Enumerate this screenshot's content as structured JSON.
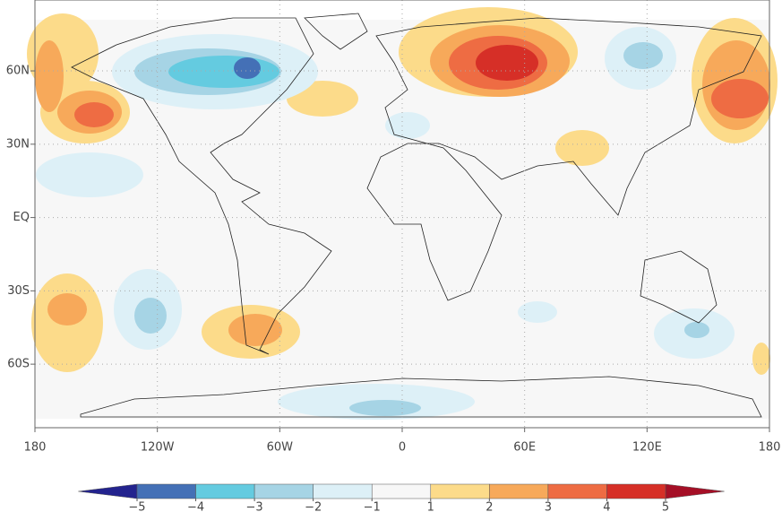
{
  "map": {
    "xlim": [
      -180,
      180
    ],
    "ylim": [
      -86,
      89
    ],
    "xticks": [
      {
        "value": -180,
        "label": "180"
      },
      {
        "value": -120,
        "label": "120W"
      },
      {
        "value": -60,
        "label": "60W"
      },
      0,
      {
        "value": 60,
        "label": "60E"
      },
      {
        "value": 120,
        "label": "120E"
      },
      {
        "value": 180,
        "label": "180"
      }
    ],
    "yticks": [
      {
        "value": 60,
        "label": "60N"
      },
      {
        "value": 30,
        "label": "30N"
      },
      {
        "value": 0,
        "label": "EQ"
      },
      {
        "value": -30,
        "label": "30S"
      },
      {
        "value": -60,
        "label": "60S"
      }
    ],
    "grid": true
  },
  "colorbar": {
    "ticks": [
      {
        "value": -5,
        "label": "−5"
      },
      {
        "value": -4,
        "label": "−4"
      },
      {
        "value": -3,
        "label": "−3"
      },
      {
        "value": -2,
        "label": "−2"
      },
      {
        "value": -1,
        "label": "−1"
      },
      1,
      2,
      3,
      4,
      5
    ],
    "colors": [
      "#23238e",
      "#4470b6",
      "#64cbe0",
      "#a6d4e5",
      "#ddf0f7",
      "#f7f7f7",
      "#fcdb8a",
      "#f7a95a",
      "#ee6c43",
      "#d62f27",
      "#a50f26"
    ]
  }
}
